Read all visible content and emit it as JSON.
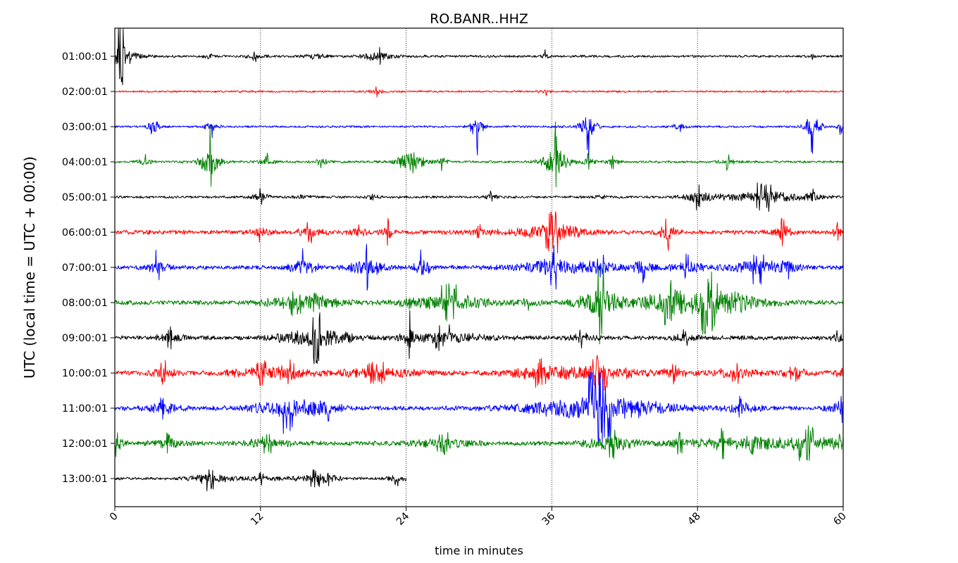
{
  "chart_data": {
    "type": "line",
    "title": "RO.BANR..HHZ",
    "xlabel": "time in minutes",
    "ylabel": "UTC (local time = UTC + 00:00)",
    "xlim": [
      0,
      60
    ],
    "x_ticks": [
      0,
      12,
      24,
      36,
      48,
      60
    ],
    "x_tick_labels": [
      "0",
      "12",
      "24",
      "36",
      "48",
      "60"
    ],
    "grid": "vertical dotted",
    "legend": "none",
    "series_colors": [
      "#000000",
      "#ff0000",
      "#0000ff",
      "#008000"
    ],
    "rows": [
      {
        "label": "01:00:01",
        "color": "#000000",
        "end_minute": 60,
        "noise": 0.9,
        "events": [
          [
            0.5,
            14,
            0.9
          ],
          [
            7.7,
            4,
            0.3
          ],
          [
            11.5,
            3,
            0.5
          ],
          [
            16.5,
            3,
            0.6
          ],
          [
            21,
            3,
            0.5
          ],
          [
            22,
            4,
            0.8
          ],
          [
            35.5,
            3,
            0.3
          ],
          [
            57.5,
            2,
            0.2
          ]
        ]
      },
      {
        "label": "02:00:01",
        "color": "#ff0000",
        "end_minute": 60,
        "noise": 0.7,
        "events": [
          [
            21.5,
            3,
            0.5
          ],
          [
            35.5,
            2,
            0.3
          ]
        ]
      },
      {
        "label": "03:00:01",
        "color": "#0000ff",
        "end_minute": 60,
        "noise": 0.8,
        "events": [
          [
            3.2,
            14,
            0.3
          ],
          [
            8,
            6,
            0.4
          ],
          [
            29.8,
            13,
            0.4
          ],
          [
            39,
            15,
            0.5
          ],
          [
            46.5,
            3,
            0.5
          ],
          [
            57.5,
            15,
            0.5
          ],
          [
            59.8,
            4,
            0.3
          ]
        ]
      },
      {
        "label": "04:00:01",
        "color": "#008000",
        "end_minute": 60,
        "noise": 0.9,
        "events": [
          [
            2.5,
            5,
            0.4
          ],
          [
            7.8,
            18,
            0.6
          ],
          [
            12.5,
            4,
            0.5
          ],
          [
            17,
            4,
            0.4
          ],
          [
            24.4,
            16,
            0.7
          ],
          [
            27,
            5,
            0.4
          ],
          [
            36.3,
            18,
            0.8
          ],
          [
            39,
            4,
            0.4
          ],
          [
            41,
            4,
            0.4
          ],
          [
            50.5,
            4,
            0.5
          ]
        ]
      },
      {
        "label": "05:00:01",
        "color": "#000000",
        "end_minute": 60,
        "noise": 0.9,
        "events": [
          [
            12,
            5,
            0.5
          ],
          [
            15.5,
            3,
            0.6
          ],
          [
            21.3,
            5,
            0.3
          ],
          [
            31,
            3,
            0.4
          ],
          [
            40,
            3,
            0.4
          ],
          [
            48,
            6,
            1.0
          ],
          [
            53.5,
            7,
            2.5
          ],
          [
            57.5,
            5,
            0.4
          ]
        ]
      },
      {
        "label": "06:00:01",
        "color": "#ff0000",
        "end_minute": 60,
        "noise": 1.6,
        "events": [
          [
            12,
            5,
            0.5
          ],
          [
            16,
            5,
            0.8
          ],
          [
            20,
            4,
            0.5
          ],
          [
            22.5,
            8,
            0.3
          ],
          [
            30,
            4,
            0.8
          ],
          [
            36,
            10,
            2.0
          ],
          [
            45.5,
            9,
            0.5
          ],
          [
            55,
            8,
            0.5
          ],
          [
            59.5,
            5,
            0.3
          ]
        ]
      },
      {
        "label": "07:00:01",
        "color": "#0000ff",
        "end_minute": 60,
        "noise": 1.6,
        "events": [
          [
            3.5,
            8,
            0.6
          ],
          [
            15.5,
            10,
            0.8
          ],
          [
            20.8,
            11,
            1.0
          ],
          [
            25.3,
            12,
            0.5
          ],
          [
            36,
            10,
            2.0
          ],
          [
            40,
            6,
            1.0
          ],
          [
            43.5,
            8,
            0.8
          ],
          [
            47,
            6,
            1.0
          ],
          [
            53,
            8,
            2.0
          ],
          [
            55.5,
            6,
            0.6
          ]
        ]
      },
      {
        "label": "08:00:01",
        "color": "#008000",
        "end_minute": 60,
        "noise": 1.7,
        "events": [
          [
            15,
            6,
            2.0
          ],
          [
            16.5,
            5,
            1.5
          ],
          [
            24.3,
            4,
            0.3
          ],
          [
            27.5,
            9,
            2.5
          ],
          [
            34,
            4,
            0.6
          ],
          [
            40,
            20,
            1.2
          ],
          [
            45.5,
            10,
            1.5
          ],
          [
            49,
            14,
            3.0
          ],
          [
            51,
            5,
            1.0
          ]
        ]
      },
      {
        "label": "09:00:01",
        "color": "#000000",
        "end_minute": 60,
        "noise": 1.6,
        "events": [
          [
            4.5,
            5,
            0.8
          ],
          [
            16.5,
            12,
            2.0
          ],
          [
            24.3,
            13,
            0.3
          ],
          [
            27,
            6,
            2.5
          ],
          [
            38.5,
            5,
            0.8
          ],
          [
            47,
            4,
            0.8
          ],
          [
            59.6,
            5,
            0.5
          ]
        ]
      },
      {
        "label": "10:00:01",
        "color": "#ff0000",
        "end_minute": 60,
        "noise": 1.6,
        "events": [
          [
            4,
            6,
            0.8
          ],
          [
            12,
            6,
            2.0
          ],
          [
            14.5,
            6,
            1.0
          ],
          [
            21.5,
            5,
            3.0
          ],
          [
            35,
            7,
            2.0
          ],
          [
            40,
            8,
            2.5
          ],
          [
            46,
            5,
            1.0
          ],
          [
            51,
            5,
            1.5
          ],
          [
            56,
            4,
            1.5
          ],
          [
            59.8,
            5,
            0.3
          ]
        ]
      },
      {
        "label": "11:00:01",
        "color": "#0000ff",
        "end_minute": 60,
        "noise": 1.6,
        "events": [
          [
            4,
            6,
            1.0
          ],
          [
            14.3,
            12,
            2.0
          ],
          [
            17.5,
            6,
            0.8
          ],
          [
            40,
            16,
            4.0
          ],
          [
            51.5,
            6,
            1.0
          ],
          [
            59.8,
            8,
            0.8
          ]
        ]
      },
      {
        "label": "12:00:01",
        "color": "#008000",
        "end_minute": 60,
        "noise": 1.6,
        "events": [
          [
            0.2,
            6,
            0.5
          ],
          [
            4.5,
            5,
            1.0
          ],
          [
            12.5,
            5,
            1.5
          ],
          [
            27,
            5,
            2.0
          ],
          [
            41,
            8,
            1.5
          ],
          [
            46.5,
            5,
            1.0
          ],
          [
            50,
            7,
            1.5
          ],
          [
            52.5,
            5,
            1.0
          ],
          [
            57,
            8,
            3.0
          ],
          [
            59.8,
            5,
            0.5
          ]
        ]
      },
      {
        "label": "13:00:01",
        "color": "#000000",
        "end_minute": 24,
        "noise": 1.0,
        "events": [
          [
            7.8,
            6,
            1.2
          ],
          [
            12,
            3,
            1.0
          ],
          [
            16.5,
            4,
            1.5
          ],
          [
            17.5,
            4,
            0.5
          ],
          [
            23.2,
            4,
            0.5
          ]
        ]
      }
    ]
  }
}
